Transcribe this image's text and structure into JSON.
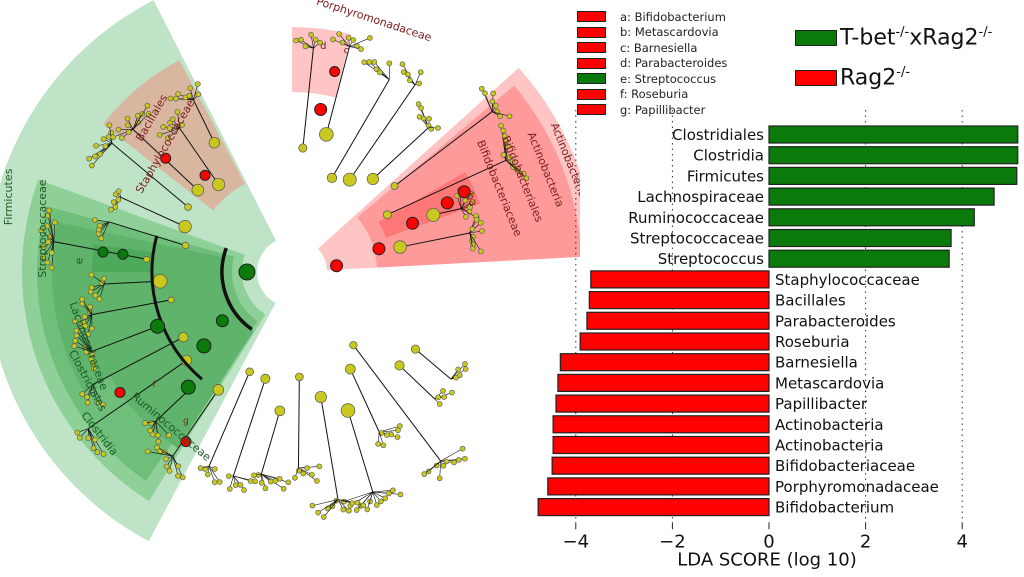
{
  "colors": {
    "group1": "#0a7a0a",
    "group2": "#ff0000",
    "node_neutral": "#c8c81e"
  },
  "legend_small": [
    {
      "key": "a",
      "label": "a: Bifidobacterium",
      "color": "#ff0000"
    },
    {
      "key": "b",
      "label": "b: Metascardovia",
      "color": "#ff0000"
    },
    {
      "key": "c",
      "label": "c: Barnesiella",
      "color": "#ff0000"
    },
    {
      "key": "d",
      "label": "d: Parabacteroides",
      "color": "#ff0000"
    },
    {
      "key": "e",
      "label": "e: Streptococcus",
      "color": "#0a7a0a"
    },
    {
      "key": "f",
      "label": "f: Roseburia",
      "color": "#ff0000"
    },
    {
      "key": "g",
      "label": "g: Papillibacter",
      "color": "#ff0000"
    }
  ],
  "legend_groups": [
    {
      "base": "T-bet",
      "sup1": "-/-",
      "mid": "xRag2",
      "sup2": "-/-",
      "color": "#0a7a0a"
    },
    {
      "base": "Rag2",
      "sup1": "-/-",
      "mid": "",
      "sup2": "",
      "color": "#ff0000"
    }
  ],
  "cladogram": {
    "clade_labels": {
      "firmicutes": "Firmicutes",
      "bacillales": "Bacillales",
      "staphylococcaceae": "Staphylococcaceae",
      "streptococcaceae": "Streptococcaceae",
      "e": "e",
      "lachnospiraceae": "Lachnospiraceae",
      "clostridiales": "Clostridiales",
      "clostridia": "Clostridia",
      "ruminococcaceae": "Ruminococcaceae",
      "f": "f",
      "g": "g",
      "porphyromonadaceae": "Porphyromonadaceae",
      "d": "d",
      "c": "c",
      "actinobacteria_phylum": "Actinobacteria",
      "actinobacteria_class": "Actinobacteria",
      "bifidobacteriales": "Bifidobacteriales",
      "bifidobacteriaceae": "Bifidobacteriaceae",
      "ba": "ba"
    }
  },
  "chart_data": {
    "type": "bar",
    "orientation": "horizontal",
    "title": "",
    "xlabel": "LDA SCORE (log 10)",
    "ylabel": "",
    "xlim": [
      -4.9,
      5.2
    ],
    "xticks": [
      -4,
      -2,
      0,
      2,
      4
    ],
    "xtick_labels": [
      "−4",
      "−2",
      "0",
      "2",
      "4"
    ],
    "grid": "vertical dotted",
    "categories": [
      "Clostridiales",
      "Clostridia",
      "Firmicutes",
      "Lachnospiraceae",
      "Ruminococcaceae",
      "Streptococcaceae",
      "Streptococcus",
      "Staphylococcaceae",
      "Bacillales",
      "Parabacteroides",
      "Roseburia",
      "Barnesiella",
      "Metascardovia",
      "Papillibacter",
      "Actinobacteria",
      "Actinobacteria",
      "Bifidobacteriaceae",
      "Porphyromonadaceae",
      "Bifidobacterium"
    ],
    "values": [
      5.15,
      5.15,
      5.13,
      4.66,
      4.25,
      3.77,
      3.73,
      -3.69,
      -3.72,
      -3.77,
      -3.91,
      -4.32,
      -4.37,
      -4.41,
      -4.47,
      -4.47,
      -4.49,
      -4.58,
      -4.78
    ],
    "groups": [
      "T-bet-/-xRag2-/-",
      "T-bet-/-xRag2-/-",
      "T-bet-/-xRag2-/-",
      "T-bet-/-xRag2-/-",
      "T-bet-/-xRag2-/-",
      "T-bet-/-xRag2-/-",
      "T-bet-/-xRag2-/-",
      "Rag2-/-",
      "Rag2-/-",
      "Rag2-/-",
      "Rag2-/-",
      "Rag2-/-",
      "Rag2-/-",
      "Rag2-/-",
      "Rag2-/-",
      "Rag2-/-",
      "Rag2-/-",
      "Rag2-/-",
      "Rag2-/-"
    ],
    "legend": "top-right"
  }
}
